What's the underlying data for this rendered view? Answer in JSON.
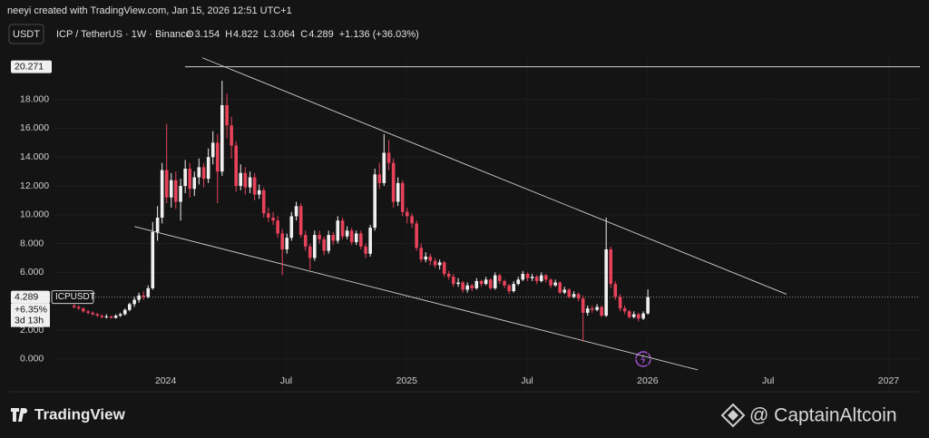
{
  "chart_data": {
    "type": "candlestick",
    "title": "neeyi created with TradingView.com, Jan 15, 2026 12:51 UTC+1",
    "currency_button": "USDT",
    "symbol": "ICP / TetherUS · 1W · Binance",
    "ohlc_letters": [
      "O",
      "H",
      "L",
      "C"
    ],
    "change_label": "+1.136 (+36.03%)",
    "ticker": "ICPUSDT",
    "last_price": 4.289,
    "last_change_label": "+6.35%",
    "countdown": "3d 13h",
    "top_level": 20.271,
    "top_level_start": 2024.08,
    "up_color": "#f0f0f0",
    "down_color": "#e8425a",
    "grid": true,
    "xlim": [
      2023.35,
      2027.13
    ],
    "xticks": [
      {
        "value": 2024,
        "label": "2024"
      },
      {
        "value": 2024.5,
        "label": "Jul"
      },
      {
        "value": 2025,
        "label": "2025"
      },
      {
        "value": 2025.5,
        "label": "Jul"
      },
      {
        "value": 2026,
        "label": "2026"
      },
      {
        "value": 2026.5,
        "label": "Jul"
      },
      {
        "value": 2027,
        "label": "2027"
      }
    ],
    "ylim": [
      -2.28,
      21.0
    ],
    "yticks": [
      {
        "value": 0,
        "label": "0.000"
      },
      {
        "value": 2,
        "label": "2.000"
      },
      {
        "value": 6,
        "label": "6.000"
      },
      {
        "value": 8,
        "label": "8.000"
      },
      {
        "value": 10,
        "label": "10.000"
      },
      {
        "value": 12,
        "label": "12.000"
      },
      {
        "value": 14,
        "label": "14.000"
      },
      {
        "value": 16,
        "label": "16.000"
      },
      {
        "value": 18,
        "label": "18.000"
      }
    ],
    "trendlines": [
      {
        "x": [
          2024.152,
          2026.576
        ],
        "y": [
          20.89,
          4.49
        ]
      },
      {
        "x": [
          2023.871,
          2026.208
        ],
        "y": [
          9.18,
          -0.76
        ]
      }
    ],
    "x": [
      2023.62,
      2023.639,
      2023.658,
      2023.678,
      2023.697,
      2023.716,
      2023.735,
      2023.754,
      2023.774,
      2023.793,
      2023.812,
      2023.831,
      2023.85,
      2023.87,
      2023.889,
      2023.908,
      2023.927,
      2023.946,
      2023.966,
      2023.985,
      2024.004,
      2024.023,
      2024.042,
      2024.062,
      2024.081,
      2024.1,
      2024.119,
      2024.138,
      2024.158,
      2024.177,
      2024.196,
      2024.215,
      2024.234,
      2024.254,
      2024.273,
      2024.292,
      2024.311,
      2024.33,
      2024.35,
      2024.369,
      2024.388,
      2024.407,
      2024.426,
      2024.446,
      2024.465,
      2024.484,
      2024.503,
      2024.522,
      2024.542,
      2024.561,
      2024.58,
      2024.599,
      2024.618,
      2024.638,
      2024.657,
      2024.676,
      2024.695,
      2024.714,
      2024.734,
      2024.753,
      2024.772,
      2024.791,
      2024.81,
      2024.83,
      2024.849,
      2024.868,
      2024.887,
      2024.906,
      2024.926,
      2024.945,
      2024.964,
      2024.983,
      2025.002,
      2025.022,
      2025.041,
      2025.06,
      2025.079,
      2025.098,
      2025.118,
      2025.137,
      2025.156,
      2025.175,
      2025.194,
      2025.214,
      2025.233,
      2025.252,
      2025.271,
      2025.29,
      2025.31,
      2025.329,
      2025.348,
      2025.367,
      2025.386,
      2025.406,
      2025.425,
      2025.444,
      2025.463,
      2025.482,
      2025.502,
      2025.521,
      2025.54,
      2025.559,
      2025.578,
      2025.598,
      2025.617,
      2025.636,
      2025.655,
      2025.674,
      2025.694,
      2025.713,
      2025.732,
      2025.751,
      2025.77,
      2025.79,
      2025.809,
      2025.828,
      2025.847,
      2025.866,
      2025.886,
      2025.905,
      2025.924,
      2025.943,
      2025.962,
      2025.982,
      2026.001
    ],
    "ohlc": [
      [
        3.7,
        3.8,
        3.5,
        3.6
      ],
      [
        3.6,
        3.7,
        3.4,
        3.5
      ],
      [
        3.5,
        3.6,
        3.2,
        3.3
      ],
      [
        3.3,
        3.4,
        3.1,
        3.2
      ],
      [
        3.2,
        3.3,
        3.0,
        3.1
      ],
      [
        3.1,
        3.2,
        2.9,
        3.0
      ],
      [
        3.0,
        3.1,
        2.8,
        2.9
      ],
      [
        2.9,
        3.1,
        2.8,
        2.95
      ],
      [
        2.95,
        3.0,
        2.8,
        2.85
      ],
      [
        2.85,
        3.1,
        2.8,
        3.0
      ],
      [
        3.0,
        3.2,
        2.9,
        3.1
      ],
      [
        3.1,
        3.5,
        3.0,
        3.4
      ],
      [
        3.4,
        3.9,
        3.3,
        3.8
      ],
      [
        3.8,
        4.3,
        3.6,
        4.1
      ],
      [
        4.1,
        4.6,
        3.9,
        4.4
      ],
      [
        4.4,
        4.7,
        4.1,
        4.3
      ],
      [
        4.3,
        5.1,
        4.2,
        4.9
      ],
      [
        4.9,
        9.5,
        4.8,
        8.8
      ],
      [
        8.8,
        10.6,
        8.2,
        9.8
      ],
      [
        9.8,
        13.6,
        9.4,
        13.1
      ],
      [
        13.1,
        16.3,
        10.8,
        11.2
      ],
      [
        11.2,
        12.9,
        10.5,
        12.4
      ],
      [
        12.4,
        13.0,
        10.4,
        10.9
      ],
      [
        10.9,
        12.5,
        9.6,
        12.0
      ],
      [
        12.0,
        13.8,
        11.5,
        13.2
      ],
      [
        13.2,
        13.6,
        11.2,
        11.8
      ],
      [
        11.8,
        13.0,
        11.3,
        12.6
      ],
      [
        12.6,
        13.9,
        12.1,
        13.3
      ],
      [
        13.3,
        13.6,
        11.9,
        12.5
      ],
      [
        12.5,
        14.6,
        12.2,
        14.0
      ],
      [
        14.0,
        15.8,
        13.5,
        15.0
      ],
      [
        15.0,
        15.6,
        10.8,
        13.0
      ],
      [
        13.0,
        19.3,
        12.7,
        17.6
      ],
      [
        17.6,
        18.4,
        15.3,
        16.2
      ],
      [
        16.2,
        16.8,
        13.9,
        14.8
      ],
      [
        14.8,
        15.1,
        11.6,
        12.0
      ],
      [
        12.0,
        13.5,
        11.7,
        12.9
      ],
      [
        12.9,
        13.3,
        11.4,
        11.9
      ],
      [
        11.9,
        13.0,
        11.5,
        12.6
      ],
      [
        12.6,
        12.9,
        11.0,
        11.4
      ],
      [
        11.4,
        12.1,
        11.1,
        11.7
      ],
      [
        11.7,
        11.9,
        9.8,
        10.1
      ],
      [
        10.1,
        10.5,
        9.5,
        9.8
      ],
      [
        9.8,
        10.2,
        9.3,
        9.6
      ],
      [
        9.6,
        9.9,
        8.4,
        8.7
      ],
      [
        8.7,
        9.0,
        5.8,
        7.6
      ],
      [
        7.6,
        8.7,
        7.3,
        8.4
      ],
      [
        8.4,
        10.2,
        8.2,
        9.9
      ],
      [
        9.9,
        10.9,
        9.6,
        10.6
      ],
      [
        10.6,
        10.8,
        8.4,
        8.6
      ],
      [
        8.6,
        8.9,
        7.5,
        7.8
      ],
      [
        7.8,
        8.0,
        6.2,
        7.0
      ],
      [
        7.0,
        8.9,
        6.8,
        8.6
      ],
      [
        8.6,
        8.9,
        8.0,
        8.3
      ],
      [
        8.3,
        8.5,
        7.2,
        7.5
      ],
      [
        7.5,
        8.9,
        7.3,
        8.6
      ],
      [
        8.6,
        8.8,
        7.9,
        8.2
      ],
      [
        8.2,
        9.9,
        8.0,
        9.6
      ],
      [
        9.6,
        9.8,
        8.3,
        8.5
      ],
      [
        8.5,
        9.2,
        8.3,
        8.9
      ],
      [
        8.9,
        9.1,
        7.9,
        8.1
      ],
      [
        8.1,
        8.9,
        7.9,
        8.7
      ],
      [
        8.7,
        8.9,
        7.6,
        7.8
      ],
      [
        7.8,
        8.0,
        7.0,
        7.3
      ],
      [
        7.3,
        9.3,
        7.1,
        9.1
      ],
      [
        9.1,
        13.2,
        8.9,
        12.8
      ],
      [
        12.8,
        13.6,
        11.8,
        12.2
      ],
      [
        12.2,
        15.6,
        12.0,
        14.3
      ],
      [
        14.3,
        15.2,
        13.1,
        13.6
      ],
      [
        13.6,
        13.9,
        10.5,
        10.9
      ],
      [
        10.9,
        12.6,
        10.6,
        12.2
      ],
      [
        12.2,
        12.4,
        9.9,
        10.2
      ],
      [
        10.2,
        10.5,
        9.4,
        9.9
      ],
      [
        9.9,
        10.1,
        9.1,
        9.4
      ],
      [
        9.4,
        9.6,
        7.5,
        7.7
      ],
      [
        7.7,
        8.0,
        6.7,
        6.9
      ],
      [
        6.9,
        7.4,
        6.7,
        7.1
      ],
      [
        7.1,
        7.3,
        6.5,
        6.8
      ],
      [
        6.8,
        7.0,
        6.3,
        6.5
      ],
      [
        6.5,
        6.9,
        6.2,
        6.7
      ],
      [
        6.7,
        6.8,
        5.7,
        5.9
      ],
      [
        5.9,
        6.1,
        5.5,
        5.7
      ],
      [
        5.7,
        5.9,
        5.0,
        5.2
      ],
      [
        5.2,
        5.6,
        5.0,
        5.3
      ],
      [
        5.3,
        5.4,
        4.6,
        4.8
      ],
      [
        4.8,
        5.3,
        4.6,
        5.1
      ],
      [
        5.1,
        5.2,
        4.7,
        4.9
      ],
      [
        4.9,
        5.6,
        4.8,
        5.4
      ],
      [
        5.4,
        5.5,
        5.0,
        5.2
      ],
      [
        5.2,
        5.7,
        5.1,
        5.5
      ],
      [
        5.5,
        5.6,
        4.8,
        4.9
      ],
      [
        4.9,
        6.0,
        4.8,
        5.8
      ],
      [
        5.8,
        5.9,
        5.2,
        5.4
      ],
      [
        5.4,
        5.5,
        4.9,
        5.1
      ],
      [
        5.1,
        5.2,
        4.5,
        4.7
      ],
      [
        4.7,
        5.4,
        4.6,
        5.2
      ],
      [
        5.2,
        5.7,
        5.1,
        5.5
      ],
      [
        5.5,
        6.1,
        5.4,
        5.9
      ],
      [
        5.9,
        6.0,
        5.4,
        5.6
      ],
      [
        5.6,
        5.9,
        5.4,
        5.7
      ],
      [
        5.7,
        5.8,
        5.2,
        5.4
      ],
      [
        5.4,
        6.0,
        5.3,
        5.8
      ],
      [
        5.8,
        5.9,
        5.3,
        5.5
      ],
      [
        5.5,
        5.6,
        4.9,
        5.1
      ],
      [
        5.1,
        5.5,
        5.0,
        5.3
      ],
      [
        5.3,
        5.4,
        4.5,
        4.6
      ],
      [
        4.6,
        5.0,
        4.5,
        4.8
      ],
      [
        4.8,
        4.9,
        4.2,
        4.3
      ],
      [
        4.3,
        4.7,
        4.2,
        4.5
      ],
      [
        4.5,
        4.6,
        4.0,
        4.2
      ],
      [
        4.2,
        4.4,
        1.2,
        3.2
      ],
      [
        3.2,
        3.7,
        3.0,
        3.5
      ],
      [
        3.5,
        3.7,
        3.2,
        3.4
      ],
      [
        3.4,
        3.8,
        3.3,
        3.6
      ],
      [
        3.6,
        3.7,
        2.9,
        3.0
      ],
      [
        3.0,
        9.8,
        2.9,
        7.6
      ],
      [
        7.6,
        7.8,
        4.9,
        5.2
      ],
      [
        5.2,
        5.4,
        4.1,
        4.3
      ],
      [
        4.3,
        4.5,
        3.3,
        3.5
      ],
      [
        3.5,
        3.7,
        3.1,
        3.3
      ],
      [
        3.3,
        3.4,
        2.8,
        2.9
      ],
      [
        2.9,
        3.3,
        2.8,
        3.1
      ],
      [
        3.1,
        3.2,
        2.6,
        2.8
      ],
      [
        2.8,
        3.3,
        2.7,
        3.154
      ],
      [
        3.154,
        4.822,
        3.064,
        4.289
      ]
    ],
    "footer_brand": "TradingView",
    "watermark": "@ CaptainAltcoin"
  }
}
